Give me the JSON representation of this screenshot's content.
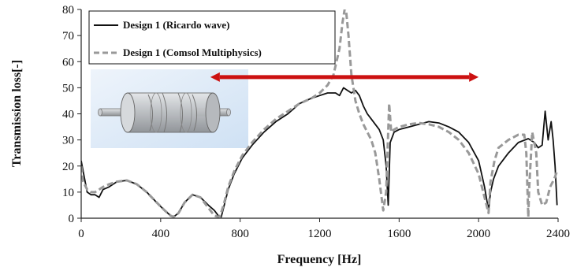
{
  "chart_data": {
    "type": "line",
    "xlabel": "Frequency [Hz]",
    "ylabel": "Transmission loss[-]",
    "xlim": [
      0,
      2400
    ],
    "ylim": [
      0,
      80
    ],
    "xticks": [
      0,
      400,
      800,
      1200,
      1600,
      2000,
      2400
    ],
    "yticks": [
      0,
      10,
      20,
      30,
      40,
      50,
      60,
      70,
      80
    ],
    "legend_position": "top-left",
    "annotation": {
      "type": "double-arrow",
      "from_x": 880,
      "to_x": 2000,
      "y": 55,
      "color": "#cc1111"
    },
    "inset": "muffler-geometry-image",
    "series": [
      {
        "name": "Design 1 (Ricardo wave)",
        "style": "solid",
        "color": "#111111",
        "x": [
          0,
          10,
          30,
          50,
          70,
          90,
          110,
          140,
          180,
          230,
          280,
          330,
          380,
          420,
          450,
          465,
          490,
          520,
          560,
          600,
          640,
          670,
          690,
          705,
          720,
          740,
          770,
          810,
          860,
          920,
          980,
          1040,
          1100,
          1160,
          1200,
          1240,
          1280,
          1300,
          1320,
          1340,
          1360,
          1380,
          1400,
          1420,
          1440,
          1460,
          1480,
          1500,
          1520,
          1535,
          1545,
          1555,
          1565,
          1575,
          1600,
          1650,
          1700,
          1750,
          1800,
          1850,
          1900,
          1950,
          2000,
          2030,
          2050,
          2060,
          2075,
          2100,
          2150,
          2200,
          2250,
          2280,
          2300,
          2320,
          2335,
          2350,
          2365,
          2375,
          2385,
          2395
        ],
        "values": [
          22,
          18,
          10,
          9,
          9,
          8,
          11,
          12,
          14,
          14.5,
          13,
          10,
          6,
          3,
          1,
          0.5,
          2,
          6,
          9,
          8,
          5,
          3,
          1,
          0.5,
          5,
          11,
          17,
          23,
          28,
          33,
          37,
          40,
          44,
          46,
          47,
          48,
          48,
          47,
          50,
          49,
          48,
          49,
          47,
          43,
          40,
          38,
          36,
          34,
          30,
          20,
          5,
          29,
          31,
          33,
          34,
          35,
          36,
          37,
          36.5,
          35,
          33,
          29,
          22,
          12,
          3,
          10,
          15,
          20,
          25,
          29,
          30.5,
          29,
          27,
          28,
          41,
          30,
          37,
          30,
          20,
          5
        ]
      },
      {
        "name": "Design 1 (Comsol Multiphysics)",
        "style": "dashed",
        "color": "#999999",
        "x": [
          0,
          10,
          30,
          50,
          70,
          90,
          110,
          140,
          180,
          230,
          280,
          330,
          380,
          420,
          450,
          465,
          490,
          520,
          560,
          600,
          640,
          670,
          690,
          700,
          720,
          740,
          770,
          810,
          860,
          920,
          980,
          1040,
          1100,
          1160,
          1200,
          1240,
          1270,
          1300,
          1315,
          1330,
          1345,
          1360,
          1380,
          1400,
          1420,
          1440,
          1460,
          1480,
          1500,
          1520,
          1535,
          1550,
          1560,
          1575,
          1600,
          1650,
          1700,
          1750,
          1800,
          1850,
          1900,
          1950,
          2000,
          2030,
          2050,
          2060,
          2080,
          2100,
          2150,
          2200,
          2230,
          2240,
          2250,
          2255,
          2270,
          2290,
          2300,
          2320,
          2340,
          2360,
          2380,
          2395
        ],
        "values": [
          20,
          14,
          11,
          10,
          10,
          11,
          12,
          13,
          14,
          14.5,
          13,
          10,
          6,
          3,
          1,
          0.5,
          2,
          6,
          9,
          8,
          4,
          1,
          0.5,
          1,
          6,
          12,
          18,
          24,
          29,
          34,
          38,
          41,
          44,
          46,
          48,
          51,
          55,
          65,
          75,
          82,
          70,
          55,
          45,
          40,
          36,
          33,
          30,
          25,
          15,
          3,
          10,
          44,
          33,
          34,
          35,
          36,
          36.5,
          36,
          35,
          33,
          30,
          25,
          17,
          8,
          2,
          14,
          22,
          27,
          30,
          32,
          32,
          25,
          0.5,
          12,
          33,
          25,
          10,
          5,
          6,
          12,
          15,
          18
        ]
      }
    ]
  }
}
